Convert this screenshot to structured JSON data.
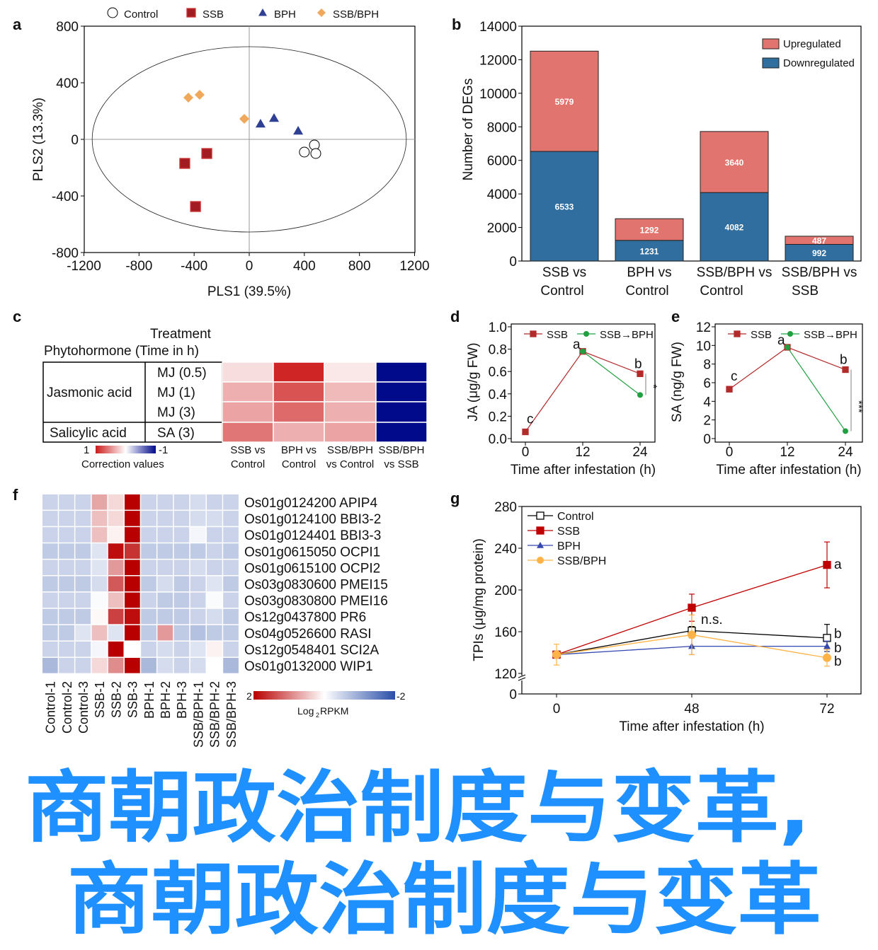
{
  "figure": {
    "panel_labels": [
      "a",
      "b",
      "c",
      "d",
      "e",
      "f",
      "g"
    ]
  },
  "watermark": {
    "line1": "商朝政治制度与变革,",
    "line2": "商朝政治制度与变革",
    "color": "#1e90ff"
  },
  "chart_data": [
    {
      "type": "scatter",
      "xlabel": "PLS1 (39.5%)",
      "ylabel": "PLS2 (13.3%)",
      "xlim": [
        -1200,
        1200
      ],
      "ylim": [
        -800,
        800
      ],
      "x_ticks": [
        "-1200",
        "-800",
        "-400",
        "0",
        "400",
        "800",
        "1200"
      ],
      "y_ticks": [
        "800",
        "400",
        "0",
        "-400",
        "-800"
      ],
      "legend_position": "top",
      "confidence_ellipse": {
        "rx": 1140,
        "ry": 655
      },
      "series": [
        {
          "name": "Control",
          "marker": "open-circle",
          "color": "#000000",
          "points": [
            [
              473,
              -40
            ],
            [
              400,
              -90
            ],
            [
              483,
              -100
            ]
          ]
        },
        {
          "name": "SSB",
          "marker": "square",
          "color": "#a11d21",
          "points": [
            [
              -308,
              -100
            ],
            [
              -468,
              -170
            ],
            [
              -390,
              -475
            ]
          ]
        },
        {
          "name": "BPH",
          "marker": "triangle",
          "color": "#2e3f94",
          "points": [
            [
              82,
              110
            ],
            [
              180,
              150
            ],
            [
              355,
              60
            ]
          ]
        },
        {
          "name": "SSB/BPH",
          "marker": "diamond",
          "color": "#f0a95a",
          "points": [
            [
              -442,
              295
            ],
            [
              -360,
              315
            ],
            [
              -36,
              145
            ]
          ]
        }
      ]
    },
    {
      "type": "bar",
      "stacked": true,
      "ylabel": "Number of DEGs",
      "ylim": [
        0,
        14000
      ],
      "y_ticks": [
        "0",
        "2000",
        "4000",
        "6000",
        "8000",
        "10000",
        "12000",
        "14000"
      ],
      "categories": [
        [
          "SSB vs",
          "Control"
        ],
        [
          "BPH vs",
          "Control"
        ],
        [
          "SSB/BPH vs",
          "Control"
        ],
        [
          "SSB/BPH vs",
          "SSB"
        ]
      ],
      "legend_position": "top-right",
      "series": [
        {
          "name": "Downregulated",
          "color": "#2f6e9f",
          "values": [
            6533,
            1231,
            4082,
            992
          ],
          "labels": [
            "6533",
            "1231",
            "4082",
            "992"
          ]
        },
        {
          "name": "Upregulated",
          "color": "#e2746f",
          "values": [
            5979,
            1292,
            3640,
            487
          ],
          "labels": [
            "5979",
            "1292",
            "3640",
            "487"
          ]
        }
      ]
    },
    {
      "type": "heatmap",
      "header": [
        "Treatment",
        "Phytohormone (Time in h)"
      ],
      "groups": [
        {
          "name": "Jasmonic acid",
          "rows": [
            "MJ (0.5)",
            "MJ (1)",
            "MJ (3)"
          ]
        },
        {
          "name": "Salicylic acid",
          "rows": [
            "SA (3)"
          ]
        }
      ],
      "columns": [
        [
          "SSB vs",
          "Control"
        ],
        [
          "BPH vs",
          "Control"
        ],
        [
          "SSB/BPH",
          "vs Control"
        ],
        [
          "SSB/BPH",
          "vs SSB"
        ]
      ],
      "values": [
        [
          0.15,
          0.95,
          0.1,
          -1
        ],
        [
          0.35,
          0.75,
          0.3,
          -1
        ],
        [
          0.4,
          0.65,
          0.35,
          -1
        ],
        [
          0.6,
          0.35,
          0.4,
          -1
        ]
      ],
      "colorbar": {
        "label": "Correction values",
        "max": "1",
        "min": "-1",
        "max_color": "#cc1a1a",
        "min_color": "#000a8a"
      }
    },
    {
      "type": "line",
      "ylabel": "JA (μg/g FW)",
      "xlabel": "Time after infestation (h)",
      "x": [
        0,
        12,
        24
      ],
      "x_ticks": [
        "0",
        "12",
        "24"
      ],
      "ylim": [
        0,
        1.0
      ],
      "y_ticks": [
        "0.0",
        "0.2",
        "0.4",
        "0.6",
        "0.8",
        "1.0"
      ],
      "series": [
        {
          "name": "SSB",
          "color": "#b22a2a",
          "x": [
            0,
            12,
            24
          ],
          "values": [
            0.06,
            0.78,
            0.58
          ]
        },
        {
          "name": "SSB→BPH",
          "color": "#20a040",
          "x": [
            12,
            24
          ],
          "values": [
            0.78,
            0.39
          ]
        }
      ],
      "annotations": [
        "c",
        "a",
        "b",
        "*"
      ]
    },
    {
      "type": "line",
      "ylabel": "SA (ng/g FW)",
      "xlabel": "Time after infestation (h)",
      "x": [
        0,
        12,
        24
      ],
      "x_ticks": [
        "0",
        "12",
        "24"
      ],
      "ylim": [
        0,
        12
      ],
      "y_ticks": [
        "0",
        "2",
        "4",
        "6",
        "8",
        "10",
        "12"
      ],
      "series": [
        {
          "name": "SSB",
          "color": "#b22a2a",
          "x": [
            0,
            12,
            24
          ],
          "values": [
            5.3,
            9.8,
            7.4
          ]
        },
        {
          "name": "SSB→BPH",
          "color": "#20a040",
          "x": [
            12,
            24
          ],
          "values": [
            9.8,
            0.8
          ]
        }
      ],
      "annotations": [
        "c",
        "a",
        "b",
        "***"
      ]
    },
    {
      "type": "heatmap",
      "columns": [
        "Control-1",
        "Control-2",
        "Control-3",
        "SSB-1",
        "SSB-2",
        "SSB-3",
        "BPH-1",
        "BPH-2",
        "BPH-3",
        "SSB/BPH-1",
        "SSB/BPH-2",
        "SSB/BPH-3"
      ],
      "rows": [
        "Os01g0124200 APIP4",
        "Os01g0124100 BBI3-2",
        "Os01g0124401 BBI3-3",
        "Os01g0615050 OCPI1",
        "Os01g0615100 OCPI2",
        "Os03g0830600 PMEI15",
        "Os03g0830800 PMEI16",
        "Os12g0437800 PR6",
        "Os04g0526600 RASI",
        "Os12g0548401 SCI2A",
        "Os01g0132000 WIP1"
      ],
      "values": [
        [
          -0.5,
          -0.5,
          -0.5,
          0.7,
          0.3,
          2,
          -0.5,
          -0.5,
          -0.5,
          -0.4,
          -0.5,
          -0.5
        ],
        [
          -0.5,
          -0.5,
          -0.5,
          0.5,
          0.3,
          2,
          -0.5,
          -0.5,
          -0.5,
          -0.4,
          -0.4,
          -0.5
        ],
        [
          -0.5,
          -0.5,
          -0.5,
          0.5,
          0.1,
          2,
          -0.5,
          -0.5,
          -0.5,
          -0.1,
          -0.5,
          -0.5
        ],
        [
          -0.6,
          -0.6,
          -0.6,
          -0.3,
          1.9,
          1.6,
          -0.6,
          -0.6,
          -0.6,
          -0.6,
          -0.5,
          -0.6
        ],
        [
          -0.5,
          -0.5,
          -0.5,
          -0.3,
          0.8,
          2,
          -0.5,
          -0.5,
          -0.5,
          -0.4,
          -0.5,
          -0.5
        ],
        [
          -0.6,
          -0.6,
          -0.6,
          -0.4,
          1.3,
          2,
          -0.6,
          -0.4,
          -0.6,
          -0.5,
          -0.3,
          -0.6
        ],
        [
          -0.5,
          -0.5,
          -0.5,
          -0.05,
          0.5,
          2,
          -0.5,
          -0.6,
          -0.6,
          -0.5,
          -0.05,
          -0.5
        ],
        [
          -0.6,
          -0.6,
          -0.6,
          0.05,
          1.5,
          1.9,
          -0.6,
          -0.6,
          -0.6,
          -0.5,
          -0.4,
          -0.6
        ],
        [
          -0.6,
          -0.6,
          -0.3,
          0.5,
          -0.3,
          2,
          -0.6,
          0.8,
          -0.6,
          -0.7,
          -0.6,
          -0.6
        ],
        [
          -0.5,
          -0.5,
          -0.5,
          -0.1,
          2,
          0,
          -0.5,
          -0.4,
          -0.5,
          -0.3,
          0.1,
          -0.5
        ],
        [
          -0.8,
          -0.5,
          -0.5,
          0.3,
          0.9,
          2,
          -0.8,
          -0.4,
          -0.5,
          -0.4,
          0,
          -0.8
        ]
      ],
      "colorbar": {
        "label": "Log",
        "label_sub": "2",
        "label_end": "RPKM",
        "max": "2",
        "min": "-2",
        "max_color": "#b90000",
        "min_color": "#2a4ea8"
      }
    },
    {
      "type": "line",
      "ylabel": "TPIs (μg/mg protein)",
      "xlabel": "Time after infestation (h)",
      "x": [
        0,
        48,
        72
      ],
      "x_ticks": [
        "0",
        "48",
        "72"
      ],
      "ylim": [
        120,
        280
      ],
      "axis_break": true,
      "y_ticks": [
        "280",
        "240",
        "200",
        "160",
        "120",
        "0"
      ],
      "legend_position": "top-left",
      "series": [
        {
          "name": "Control",
          "marker": "open-square",
          "color": "#000000",
          "values": [
            138,
            161,
            154
          ],
          "errors": [
            3,
            4,
            13
          ]
        },
        {
          "name": "SSB",
          "marker": "square",
          "color": "#c00000",
          "values": [
            138,
            183,
            224
          ],
          "errors": [
            3,
            13,
            22
          ]
        },
        {
          "name": "BPH",
          "marker": "triangle",
          "color": "#3448b0",
          "values": [
            138,
            146,
            146
          ],
          "errors": [
            3,
            8,
            5
          ]
        },
        {
          "name": "SSB/BPH",
          "marker": "circle",
          "color": "#ffb347",
          "values": [
            138,
            157,
            135
          ],
          "errors": [
            10,
            19,
            8
          ]
        }
      ],
      "annotations": {
        "ssb_72": "a",
        "control_72": "b",
        "bph_72": "b",
        "ssbbph_72": "b",
        "at_48": "n.s."
      }
    }
  ]
}
